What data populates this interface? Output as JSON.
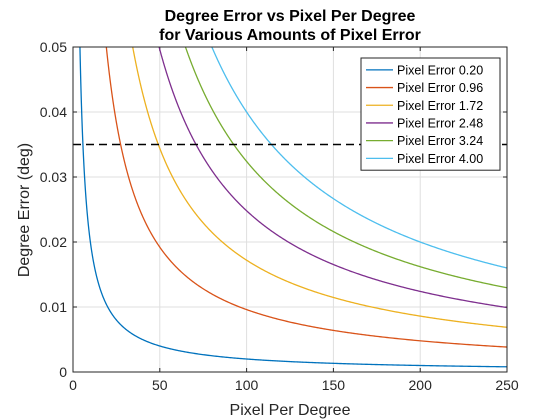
{
  "chart_data": {
    "type": "line",
    "title": [
      "Degree Error vs Pixel Per Degree",
      "for Various Amounts of Pixel Error"
    ],
    "xlabel": "Pixel Per Degree",
    "ylabel": "Degree Error (deg)",
    "xlim": [
      0,
      250
    ],
    "ylim": [
      0,
      0.05
    ],
    "xticks": [
      0,
      50,
      100,
      150,
      200,
      250
    ],
    "yticks": [
      0,
      0.01,
      0.02,
      0.03,
      0.04,
      0.05
    ],
    "xtick_labels": [
      "0",
      "50",
      "100",
      "150",
      "200",
      "250"
    ],
    "ytick_labels": [
      "0",
      "0.01",
      "0.02",
      "0.03",
      "0.04",
      "0.05"
    ],
    "grid": true,
    "legend_position": "top-right",
    "relationship": "degree_error = pixel_error / pixel_per_degree",
    "series": [
      {
        "name": "Pixel Error 0.20",
        "pixel_error": 0.2,
        "color": "#0072BD"
      },
      {
        "name": "Pixel Error 0.96",
        "pixel_error": 0.96,
        "color": "#D95319"
      },
      {
        "name": "Pixel Error 1.72",
        "pixel_error": 1.72,
        "color": "#EDB120"
      },
      {
        "name": "Pixel Error 2.48",
        "pixel_error": 2.48,
        "color": "#7E2F8E"
      },
      {
        "name": "Pixel Error 3.24",
        "pixel_error": 3.24,
        "color": "#77AC30"
      },
      {
        "name": "Pixel Error 4.00",
        "pixel_error": 4.0,
        "color": "#4DBEEE"
      }
    ],
    "reference_line": {
      "y": 0.035,
      "style": "dashed",
      "color": "#000000"
    }
  }
}
